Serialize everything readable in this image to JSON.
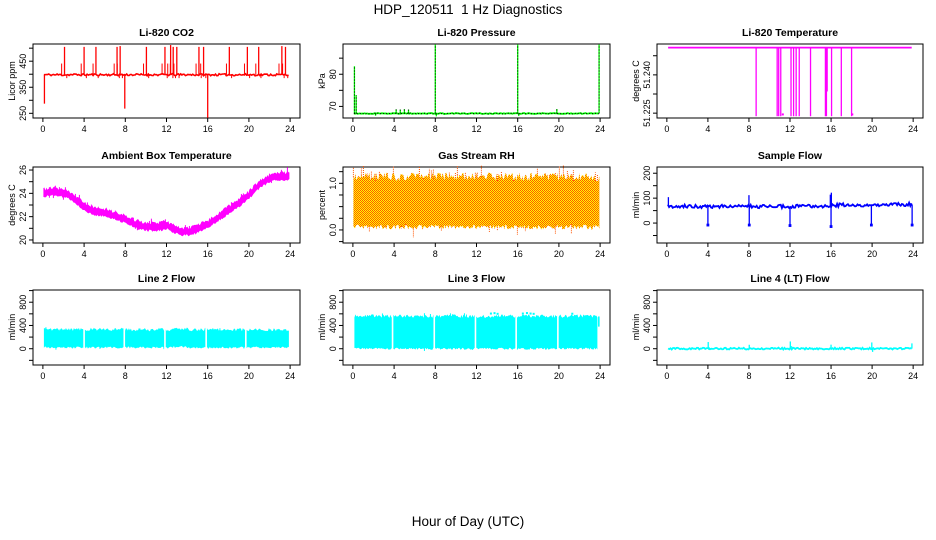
{
  "page": {
    "main_title": "HDP_120511  1 Hz Diagnostics",
    "x_axis_label": "Hour of Day (UTC)",
    "background": "#FFFFFF",
    "axis_color": "#000000"
  },
  "chart_data": [
    {
      "type": "line",
      "title": "Li-820 CO2",
      "ylabel": "Licor ppm",
      "color": "#FF0000",
      "xlim": [
        -0.96,
        24.96
      ],
      "xticks": [
        0,
        4,
        8,
        12,
        16,
        20,
        24
      ],
      "ylim": [
        232,
        516
      ],
      "yticks": [
        {
          "v": 250,
          "label": "250"
        },
        {
          "v": 300
        },
        {
          "v": 350,
          "label": "350"
        },
        {
          "v": 400
        },
        {
          "v": 450,
          "label": "450"
        },
        {
          "v": 500
        }
      ],
      "series": {
        "kind": "spiky",
        "baseline": [
          [
            0.1,
            398
          ],
          [
            23.9,
            398
          ]
        ],
        "noise": 4,
        "stroke": 1.6,
        "spikes_up": [
          [
            2.1,
            505
          ],
          [
            4.0,
            505
          ],
          [
            5.15,
            505
          ],
          [
            7.2,
            505
          ],
          [
            7.5,
            508
          ],
          [
            10.05,
            505
          ],
          [
            11.85,
            505
          ],
          [
            12.4,
            512
          ],
          [
            12.65,
            505
          ],
          [
            13.0,
            505
          ],
          [
            15.15,
            505
          ],
          [
            15.6,
            505
          ],
          [
            18.1,
            505
          ],
          [
            19.85,
            505
          ],
          [
            20.95,
            505
          ],
          [
            23.2,
            508
          ],
          [
            23.55,
            505
          ]
        ],
        "spikes_down": [
          [
            0.15,
            287
          ],
          [
            7.95,
            268
          ],
          [
            16.0,
            233
          ]
        ],
        "event_marks": {
          "dx": [
            -0.28,
            0.22
          ],
          "v": [
            441,
            385
          ]
        }
      }
    },
    {
      "type": "line",
      "title": "Li-820 Pressure",
      "ylabel": "kPa",
      "color": "#00FF00",
      "xlim": [
        -0.96,
        24.96
      ],
      "xticks": [
        0,
        4,
        8,
        12,
        16,
        20,
        24
      ],
      "ylim": [
        66.4,
        89.4
      ],
      "yticks": [
        {
          "v": 70,
          "label": "70"
        },
        {
          "v": 75
        },
        {
          "v": 80,
          "label": "80"
        },
        {
          "v": 85
        }
      ],
      "series": {
        "kind": "spiky",
        "baseline": [
          [
            0.1,
            67.8
          ],
          [
            23.92,
            67.8
          ]
        ],
        "noise": 0.12,
        "stroke": 1.8,
        "overlay": "dotted",
        "spikes_up": [
          [
            0.15,
            82.5
          ],
          [
            0.32,
            73.5
          ],
          [
            4.2,
            69.1
          ],
          [
            4.6,
            69.0
          ],
          [
            5.0,
            69.15
          ],
          [
            5.4,
            69.0
          ],
          [
            8.0,
            89.2
          ],
          [
            16.0,
            89.2
          ],
          [
            19.8,
            69.2
          ],
          [
            23.9,
            89.2
          ]
        ],
        "spikes_down": [
          [
            2.2,
            67.1
          ],
          [
            8.1,
            66.9
          ],
          [
            16.1,
            67.0
          ]
        ]
      }
    },
    {
      "type": "line",
      "title": "Li-820 Temperature",
      "ylabel": "degrees C",
      "color": "#FF00FF",
      "xlim": [
        -0.96,
        24.96
      ],
      "xticks": [
        0,
        4,
        8,
        12,
        16,
        20,
        24
      ],
      "ylim": [
        51.2231,
        51.2521
      ],
      "yticks": [
        {
          "v": 51.225,
          "label": "51.225"
        },
        {
          "v": 51.2325
        },
        {
          "v": 51.24,
          "label": "51.240"
        },
        {
          "v": 51.2475
        }
      ],
      "series": {
        "kind": "spiky",
        "baseline": [
          [
            0.12,
            51.2507
          ],
          [
            23.95,
            51.2507
          ]
        ],
        "noise": 0,
        "stroke": 1.8,
        "spikes_up": [],
        "spikes_down": [
          [
            8.7,
            51.2238
          ],
          [
            10.75,
            51.2238
          ],
          [
            10.9,
            51.2238
          ],
          [
            11.1,
            51.2238
          ],
          [
            12.1,
            51.2238
          ],
          [
            12.35,
            51.2238
          ],
          [
            12.6,
            51.2238
          ],
          [
            12.9,
            51.2238
          ],
          [
            14.0,
            51.2238
          ],
          [
            15.45,
            51.2238
          ],
          [
            15.55,
            51.2238
          ],
          [
            15.62,
            51.2335
          ],
          [
            16.05,
            51.2238
          ],
          [
            17.0,
            51.2238
          ],
          [
            18.0,
            51.2238
          ]
        ],
        "dots": [
          [
            11.3,
            51.2245
          ],
          [
            18.07,
            51.2245
          ]
        ]
      }
    },
    {
      "type": "line",
      "title": "Ambient Box Temperature",
      "ylabel": "degrees C",
      "color": "#FF00FF",
      "xlim": [
        -0.96,
        24.96
      ],
      "xticks": [
        0,
        4,
        8,
        12,
        16,
        20,
        24
      ],
      "ylim": [
        19.74,
        26.26
      ],
      "yticks": [
        {
          "v": 20,
          "label": "20"
        },
        {
          "v": 21
        },
        {
          "v": 22,
          "label": "22"
        },
        {
          "v": 23
        },
        {
          "v": 24,
          "label": "24"
        },
        {
          "v": 25
        },
        {
          "v": 26,
          "label": "26"
        }
      ],
      "series": {
        "kind": "band",
        "halfwidth": 0.33,
        "jitter": 0.15,
        "whisker_freq": 0.25,
        "whisker_amp": 0.3,
        "center": [
          [
            0.05,
            24.0
          ],
          [
            0.7,
            24.15
          ],
          [
            1.5,
            24.1
          ],
          [
            2.5,
            23.9
          ],
          [
            3,
            23.6
          ],
          [
            4,
            22.85
          ],
          [
            5,
            22.45
          ],
          [
            6,
            22.35
          ],
          [
            7,
            22.1
          ],
          [
            8,
            21.8
          ],
          [
            9,
            21.35
          ],
          [
            10,
            21.15
          ],
          [
            11,
            21.1
          ],
          [
            11.8,
            21.2
          ],
          [
            12.1,
            21.3
          ],
          [
            12.4,
            21.05
          ],
          [
            13,
            20.85
          ],
          [
            13.6,
            20.72
          ],
          [
            14.3,
            20.75
          ],
          [
            15,
            20.95
          ],
          [
            16,
            21.35
          ],
          [
            17,
            21.95
          ],
          [
            18,
            22.55
          ],
          [
            19,
            23.15
          ],
          [
            20,
            23.85
          ],
          [
            20.6,
            24.4
          ],
          [
            21,
            24.75
          ],
          [
            22,
            25.3
          ],
          [
            22.8,
            25.5
          ],
          [
            23.4,
            25.45
          ],
          [
            23.95,
            25.5
          ]
        ]
      }
    },
    {
      "type": "line",
      "title": "Gas Stream RH",
      "ylabel": "percent",
      "color": "#FF8800",
      "fill_colors": [
        "#FFFF00",
        "#FF5500"
      ],
      "xlim": [
        -0.96,
        24.96
      ],
      "xticks": [
        0,
        4,
        8,
        12,
        16,
        20,
        24
      ],
      "ylim": [
        -0.28,
        1.35
      ],
      "yticks": [
        {
          "v": -0.25
        },
        {
          "v": 0,
          "label": "0.0"
        },
        {
          "v": 0.25
        },
        {
          "v": 0.5
        },
        {
          "v": 0.75
        },
        {
          "v": 1.0,
          "label": "1.0"
        },
        {
          "v": 1.25
        }
      ],
      "series": {
        "kind": "band",
        "fill": "checker",
        "halfwidth": 0.54,
        "jitter": 0.09,
        "whisker_freq": 0.3,
        "whisker_amp": 0.22,
        "center": [
          [
            0.05,
            0.6
          ],
          [
            23.95,
            0.6
          ]
        ]
      }
    },
    {
      "type": "line",
      "title": "Sample Flow",
      "ylabel": "ml/min",
      "color": "#0000FF",
      "xlim": [
        -0.96,
        24.96
      ],
      "xticks": [
        0,
        4,
        8,
        12,
        16,
        20,
        24
      ],
      "ylim": [
        -80,
        225
      ],
      "yticks": [
        {
          "v": -50
        },
        {
          "v": 0,
          "label": "0"
        },
        {
          "v": 50
        },
        {
          "v": 100,
          "label": "100"
        },
        {
          "v": 150
        },
        {
          "v": 200,
          "label": "200"
        }
      ],
      "series": {
        "kind": "spiky",
        "baseline": [
          [
            0.1,
            67
          ],
          [
            15.99,
            67
          ],
          [
            16.05,
            72
          ],
          [
            21,
            73
          ],
          [
            23.9,
            75
          ]
        ],
        "noise": 7,
        "stroke": 1.8,
        "spikes_up": [
          [
            0.15,
            104
          ],
          [
            8.0,
            112
          ],
          [
            15.93,
            114
          ],
          [
            16.03,
            122
          ]
        ],
        "spikes_down": [
          [
            4.0,
            -8
          ],
          [
            8.03,
            -8
          ],
          [
            12.0,
            -10
          ],
          [
            16.0,
            -14
          ],
          [
            19.93,
            -8
          ],
          [
            23.9,
            -8
          ]
        ],
        "dots_at_spike_down": true
      }
    },
    {
      "type": "line",
      "title": "Line 2 Flow",
      "ylabel": "ml/min",
      "color": "#00FFFF",
      "xlim": [
        -0.96,
        24.96
      ],
      "xticks": [
        0,
        4,
        8,
        12,
        16,
        20,
        24
      ],
      "ylim": [
        -280,
        1010
      ],
      "yticks": [
        {
          "v": -200
        },
        {
          "v": 0,
          "label": "0"
        },
        {
          "v": 200
        },
        {
          "v": 400,
          "label": "400"
        },
        {
          "v": 600
        },
        {
          "v": 800,
          "label": "800"
        },
        {
          "v": 1000
        }
      ],
      "series": {
        "kind": "band",
        "halfwidth": 155,
        "jitter": 30,
        "whisker_freq": 0.12,
        "whisker_amp": 28,
        "center": [
          [
            0.1,
            175
          ],
          [
            12.2,
            175
          ],
          [
            12.5,
            187
          ],
          [
            13.8,
            187
          ],
          [
            14.1,
            175
          ],
          [
            23.9,
            175
          ]
        ],
        "gaps": [
          4.0,
          7.9,
          11.85,
          15.85,
          19.7
        ]
      }
    },
    {
      "type": "line",
      "title": "Line 3 Flow",
      "ylabel": "ml/min",
      "color": "#00FFFF",
      "xlim": [
        -0.96,
        24.96
      ],
      "xticks": [
        0,
        4,
        8,
        12,
        16,
        20,
        24
      ],
      "ylim": [
        -280,
        1010
      ],
      "yticks": [
        {
          "v": -200
        },
        {
          "v": 0,
          "label": "0"
        },
        {
          "v": 200
        },
        {
          "v": 400,
          "label": "400"
        },
        {
          "v": 600
        },
        {
          "v": 800,
          "label": "800"
        },
        {
          "v": 1000
        }
      ],
      "series": {
        "kind": "band",
        "halfwidth": 280,
        "jitter": 30,
        "whisker_freq": 0.1,
        "whisker_amp": 38,
        "center": [
          [
            0.15,
            280
          ],
          [
            23.78,
            280
          ]
        ],
        "gaps": [
          3.85,
          7.9,
          11.9,
          15.85,
          19.9
        ],
        "dots": [
          [
            13.4,
            605
          ],
          [
            13.75,
            612
          ],
          [
            14.05,
            600
          ],
          [
            16.5,
            605
          ],
          [
            16.9,
            614
          ],
          [
            17.25,
            605
          ],
          [
            17.55,
            600
          ],
          [
            21.3,
            602
          ]
        ],
        "segments": [
          {
            "x0": 23.8,
            "x1": 23.95,
            "lo": 380,
            "hi": 555
          }
        ]
      }
    },
    {
      "type": "line",
      "title": "Line 4 (LT) Flow",
      "ylabel": "ml/min",
      "color": "#00FFFF",
      "xlim": [
        -0.96,
        24.96
      ],
      "xticks": [
        0,
        4,
        8,
        12,
        16,
        20,
        24
      ],
      "ylim": [
        -280,
        1010
      ],
      "yticks": [
        {
          "v": -200
        },
        {
          "v": 0,
          "label": "0"
        },
        {
          "v": 200
        },
        {
          "v": 400,
          "label": "400"
        },
        {
          "v": 600
        },
        {
          "v": 800,
          "label": "800"
        },
        {
          "v": 1000
        }
      ],
      "series": {
        "kind": "spiky",
        "baseline": [
          [
            0.12,
            2
          ],
          [
            23.9,
            2
          ]
        ],
        "noise": 15,
        "stroke": 1.8,
        "spikes_up": [
          [
            4.03,
            115
          ],
          [
            8.03,
            68
          ],
          [
            12.03,
            125
          ],
          [
            12.12,
            45
          ],
          [
            16.0,
            70
          ],
          [
            19.97,
            108
          ],
          [
            23.88,
            92
          ]
        ],
        "spikes_down": [
          [
            4.1,
            -22
          ],
          [
            20.05,
            -55
          ]
        ]
      }
    }
  ]
}
